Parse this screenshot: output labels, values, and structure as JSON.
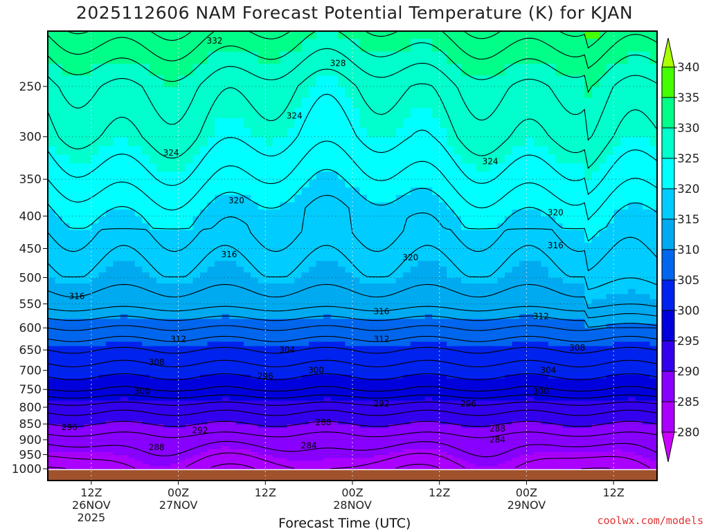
{
  "title": "2025112606 NAM Forecast Potential Temperature (K) for KJAN",
  "credit": "coolwx.com/models",
  "chart_data": {
    "type": "heatmap",
    "title": "2025112606 NAM Forecast Potential Temperature (K) for KJAN",
    "xlabel": "Forecast Time (UTC)",
    "ylabel": "",
    "y_scale": "log",
    "y_inverted": true,
    "ylim": [
      1000,
      200
    ],
    "y_ticks": [
      250,
      300,
      350,
      400,
      450,
      500,
      550,
      600,
      650,
      700,
      750,
      800,
      850,
      900,
      950,
      1000
    ],
    "y_tick_labels": [
      "250",
      "300",
      "350",
      "400",
      "450",
      "500",
      "550",
      "600",
      "650",
      "700",
      "750",
      "800",
      "850",
      "900",
      "950",
      "1000"
    ],
    "x_ticks_hours": [
      6,
      18,
      30,
      42,
      54,
      66,
      78
    ],
    "xlim_hours": [
      0,
      84
    ],
    "x_tick_labels": [
      [
        "12Z",
        "26NOV",
        "2025"
      ],
      [
        "00Z",
        "27NOV"
      ],
      [
        "12Z"
      ],
      [
        "00Z",
        "28NOV"
      ],
      [
        "12Z"
      ],
      [
        "00Z",
        "29NOV"
      ],
      [
        "12Z"
      ]
    ],
    "grid": true,
    "colorbar": {
      "levels": [
        280,
        285,
        290,
        295,
        300,
        305,
        310,
        315,
        320,
        325,
        330,
        335,
        340
      ],
      "labels": [
        "280",
        "285",
        "290",
        "295",
        "300",
        "305",
        "310",
        "315",
        "320",
        "325",
        "330",
        "335",
        "340"
      ],
      "colors": [
        "#cc00ff",
        "#aa00ff",
        "#8800ff",
        "#3300ee",
        "#0000dd",
        "#0022ee",
        "#0066ee",
        "#00aaf0",
        "#00ccff",
        "#00ffff",
        "#00ffcc",
        "#00ff88",
        "#44ff00",
        "#aaff00"
      ],
      "extend": "both"
    },
    "isotherm_labels": [
      {
        "text": "332",
        "hour": 23,
        "p": 212
      },
      {
        "text": "328",
        "hour": 40,
        "p": 230
      },
      {
        "text": "324",
        "hour": 34,
        "p": 278
      },
      {
        "text": "324",
        "hour": 17,
        "p": 318
      },
      {
        "text": "324",
        "hour": 61,
        "p": 328
      },
      {
        "text": "320",
        "hour": 26,
        "p": 378
      },
      {
        "text": "320",
        "hour": 50,
        "p": 465
      },
      {
        "text": "320",
        "hour": 70,
        "p": 395
      },
      {
        "text": "316",
        "hour": 25,
        "p": 460
      },
      {
        "text": "316",
        "hour": 70,
        "p": 445
      },
      {
        "text": "316",
        "hour": 4,
        "p": 535
      },
      {
        "text": "316",
        "hour": 46,
        "p": 565
      },
      {
        "text": "312",
        "hour": 18,
        "p": 625
      },
      {
        "text": "312",
        "hour": 46,
        "p": 625
      },
      {
        "text": "312",
        "hour": 68,
        "p": 575
      },
      {
        "text": "308",
        "hour": 15,
        "p": 680
      },
      {
        "text": "308",
        "hour": 73,
        "p": 645
      },
      {
        "text": "304",
        "hour": 33,
        "p": 650
      },
      {
        "text": "304",
        "hour": 69,
        "p": 700
      },
      {
        "text": "300",
        "hour": 13,
        "p": 755
      },
      {
        "text": "300",
        "hour": 37,
        "p": 700
      },
      {
        "text": "300",
        "hour": 68,
        "p": 755
      },
      {
        "text": "296",
        "hour": 30,
        "p": 715
      },
      {
        "text": "296",
        "hour": 58,
        "p": 790
      },
      {
        "text": "296",
        "hour": 3,
        "p": 860
      },
      {
        "text": "292",
        "hour": 21,
        "p": 870
      },
      {
        "text": "292",
        "hour": 46,
        "p": 790
      },
      {
        "text": "288",
        "hour": 15,
        "p": 925
      },
      {
        "text": "288",
        "hour": 38,
        "p": 845
      },
      {
        "text": "288",
        "hour": 62,
        "p": 865
      },
      {
        "text": "284",
        "hour": 36,
        "p": 920
      },
      {
        "text": "284",
        "hour": 62,
        "p": 900
      }
    ]
  }
}
